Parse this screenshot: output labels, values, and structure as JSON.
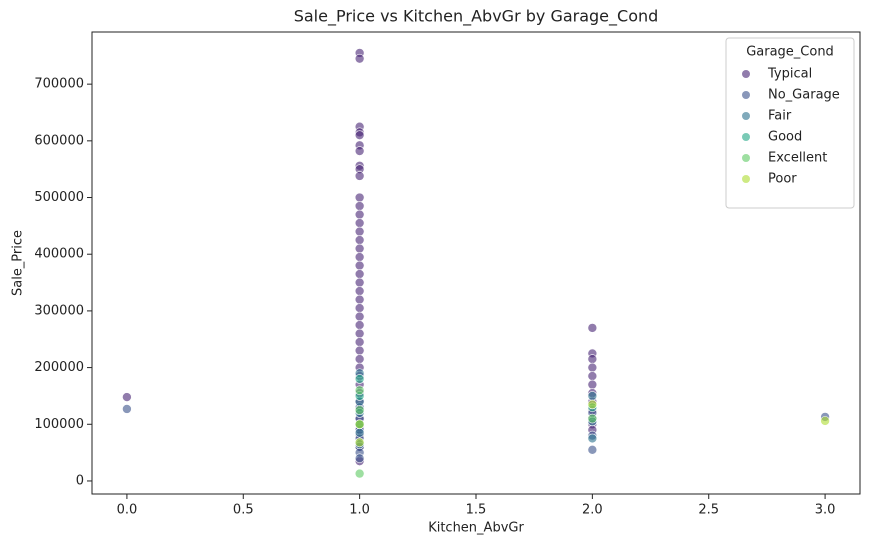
{
  "chart_data": {
    "type": "scatter",
    "title": "Sale_Price vs Kitchen_AbvGr by Garage_Cond",
    "x_label": "Kitchen_AbvGr",
    "y_label": "Sale_Price",
    "legend_title": "Garage_Cond",
    "legend_position": "upper right",
    "xlim": [
      -0.15,
      3.15
    ],
    "ylim": [
      -23000,
      792000
    ],
    "xticks": [
      {
        "value": 0,
        "label": "0.0"
      },
      {
        "value": 0.5,
        "label": "0.5"
      },
      {
        "value": 1,
        "label": "1.0"
      },
      {
        "value": 1.5,
        "label": "1.5"
      },
      {
        "value": 2,
        "label": "2.0"
      },
      {
        "value": 2.5,
        "label": "2.5"
      },
      {
        "value": 3,
        "label": "3.0"
      }
    ],
    "yticks": [
      0,
      100000,
      200000,
      300000,
      400000,
      500000,
      600000,
      700000
    ],
    "series": [
      {
        "name": "Typical",
        "color": "#482475",
        "x": [
          1,
          1,
          1,
          1,
          1,
          1,
          1,
          1,
          1,
          1,
          1,
          1,
          1,
          1,
          1,
          1,
          1,
          1,
          1,
          1,
          1,
          1,
          1,
          1,
          1,
          1,
          1,
          1,
          1,
          1,
          1,
          1,
          1,
          1,
          1,
          1,
          1,
          1,
          1,
          1,
          1,
          2,
          2,
          2,
          2,
          2,
          2,
          2,
          2,
          2,
          2,
          2,
          2,
          0
        ],
        "values": [
          755000,
          745000,
          625000,
          615000,
          610000,
          592000,
          582000,
          556000,
          550000,
          538000,
          500000,
          485000,
          470000,
          455000,
          440000,
          425000,
          410000,
          395000,
          380000,
          365000,
          350000,
          335000,
          320000,
          305000,
          290000,
          275000,
          260000,
          245000,
          230000,
          215000,
          200000,
          185000,
          170000,
          155000,
          140000,
          125000,
          110000,
          95000,
          80000,
          60000,
          35000,
          270000,
          225000,
          215000,
          200000,
          185000,
          170000,
          155000,
          140000,
          125000,
          110000,
          100000,
          90000,
          148000
        ]
      },
      {
        "name": "No_Garage",
        "color": "#3b528b",
        "x": [
          0,
          1,
          1,
          1,
          1,
          1,
          1,
          1,
          2,
          2,
          2,
          3
        ],
        "values": [
          127000,
          130000,
          110000,
          90000,
          75000,
          60000,
          50000,
          40000,
          55000,
          80000,
          120000,
          113000
        ]
      },
      {
        "name": "Fair",
        "color": "#2c728e",
        "x": [
          1,
          1,
          1,
          1,
          1,
          1,
          2,
          2,
          2
        ],
        "values": [
          190000,
          140000,
          120000,
          100000,
          85000,
          65000,
          150000,
          105000,
          75000
        ]
      },
      {
        "name": "Good",
        "color": "#21a685",
        "x": [
          1,
          1,
          1,
          2
        ],
        "values": [
          180000,
          150000,
          100000,
          130000
        ]
      },
      {
        "name": "Excellent",
        "color": "#5ec962",
        "x": [
          1,
          1,
          1,
          2
        ],
        "values": [
          13000,
          160000,
          125000,
          110000
        ]
      },
      {
        "name": "Poor",
        "color": "#addc30",
        "x": [
          1,
          1,
          2,
          3
        ],
        "values": [
          100000,
          68000,
          135000,
          106000
        ]
      }
    ]
  }
}
